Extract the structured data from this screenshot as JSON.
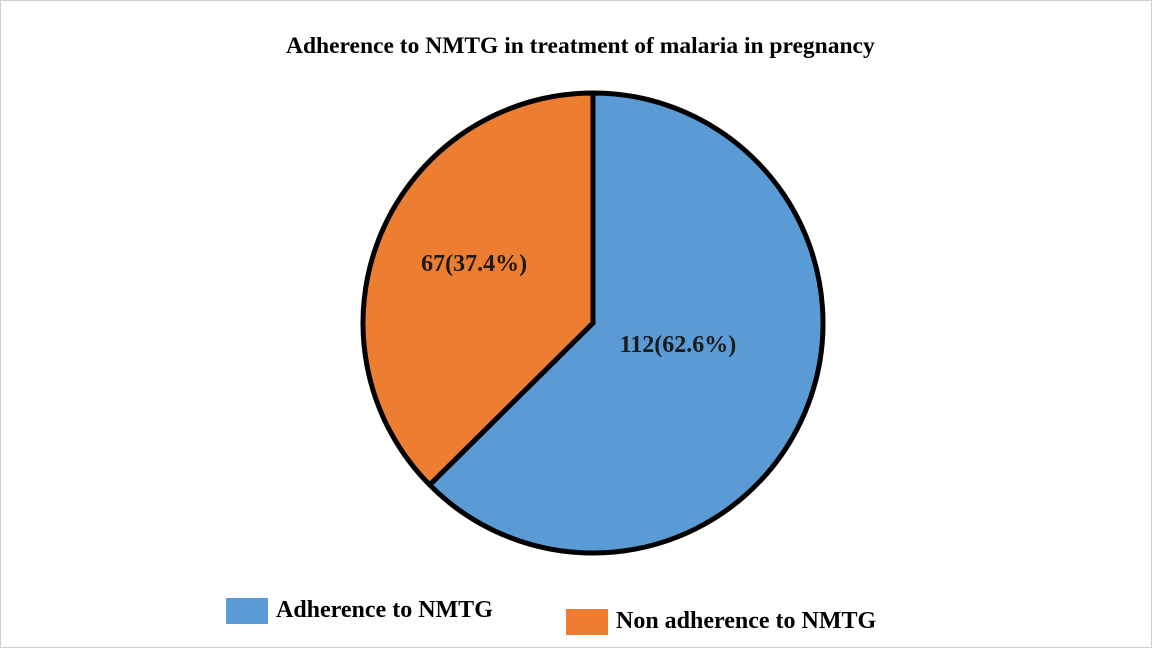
{
  "chart_data": {
    "type": "pie",
    "title": "Adherence to NMTG in treatment of malaria in pregnancy",
    "slices": [
      {
        "label": "Adherence to NMTG",
        "value": 112,
        "percent": 62.6,
        "data_label": "112(62.6%)",
        "color": "#5b9bd5"
      },
      {
        "label": "Non adherence to NMTG",
        "value": 67,
        "percent": 37.4,
        "data_label": "67(37.4%)",
        "color": "#ed7d31"
      }
    ],
    "legend_position": "bottom",
    "outline_color": "#000000"
  }
}
